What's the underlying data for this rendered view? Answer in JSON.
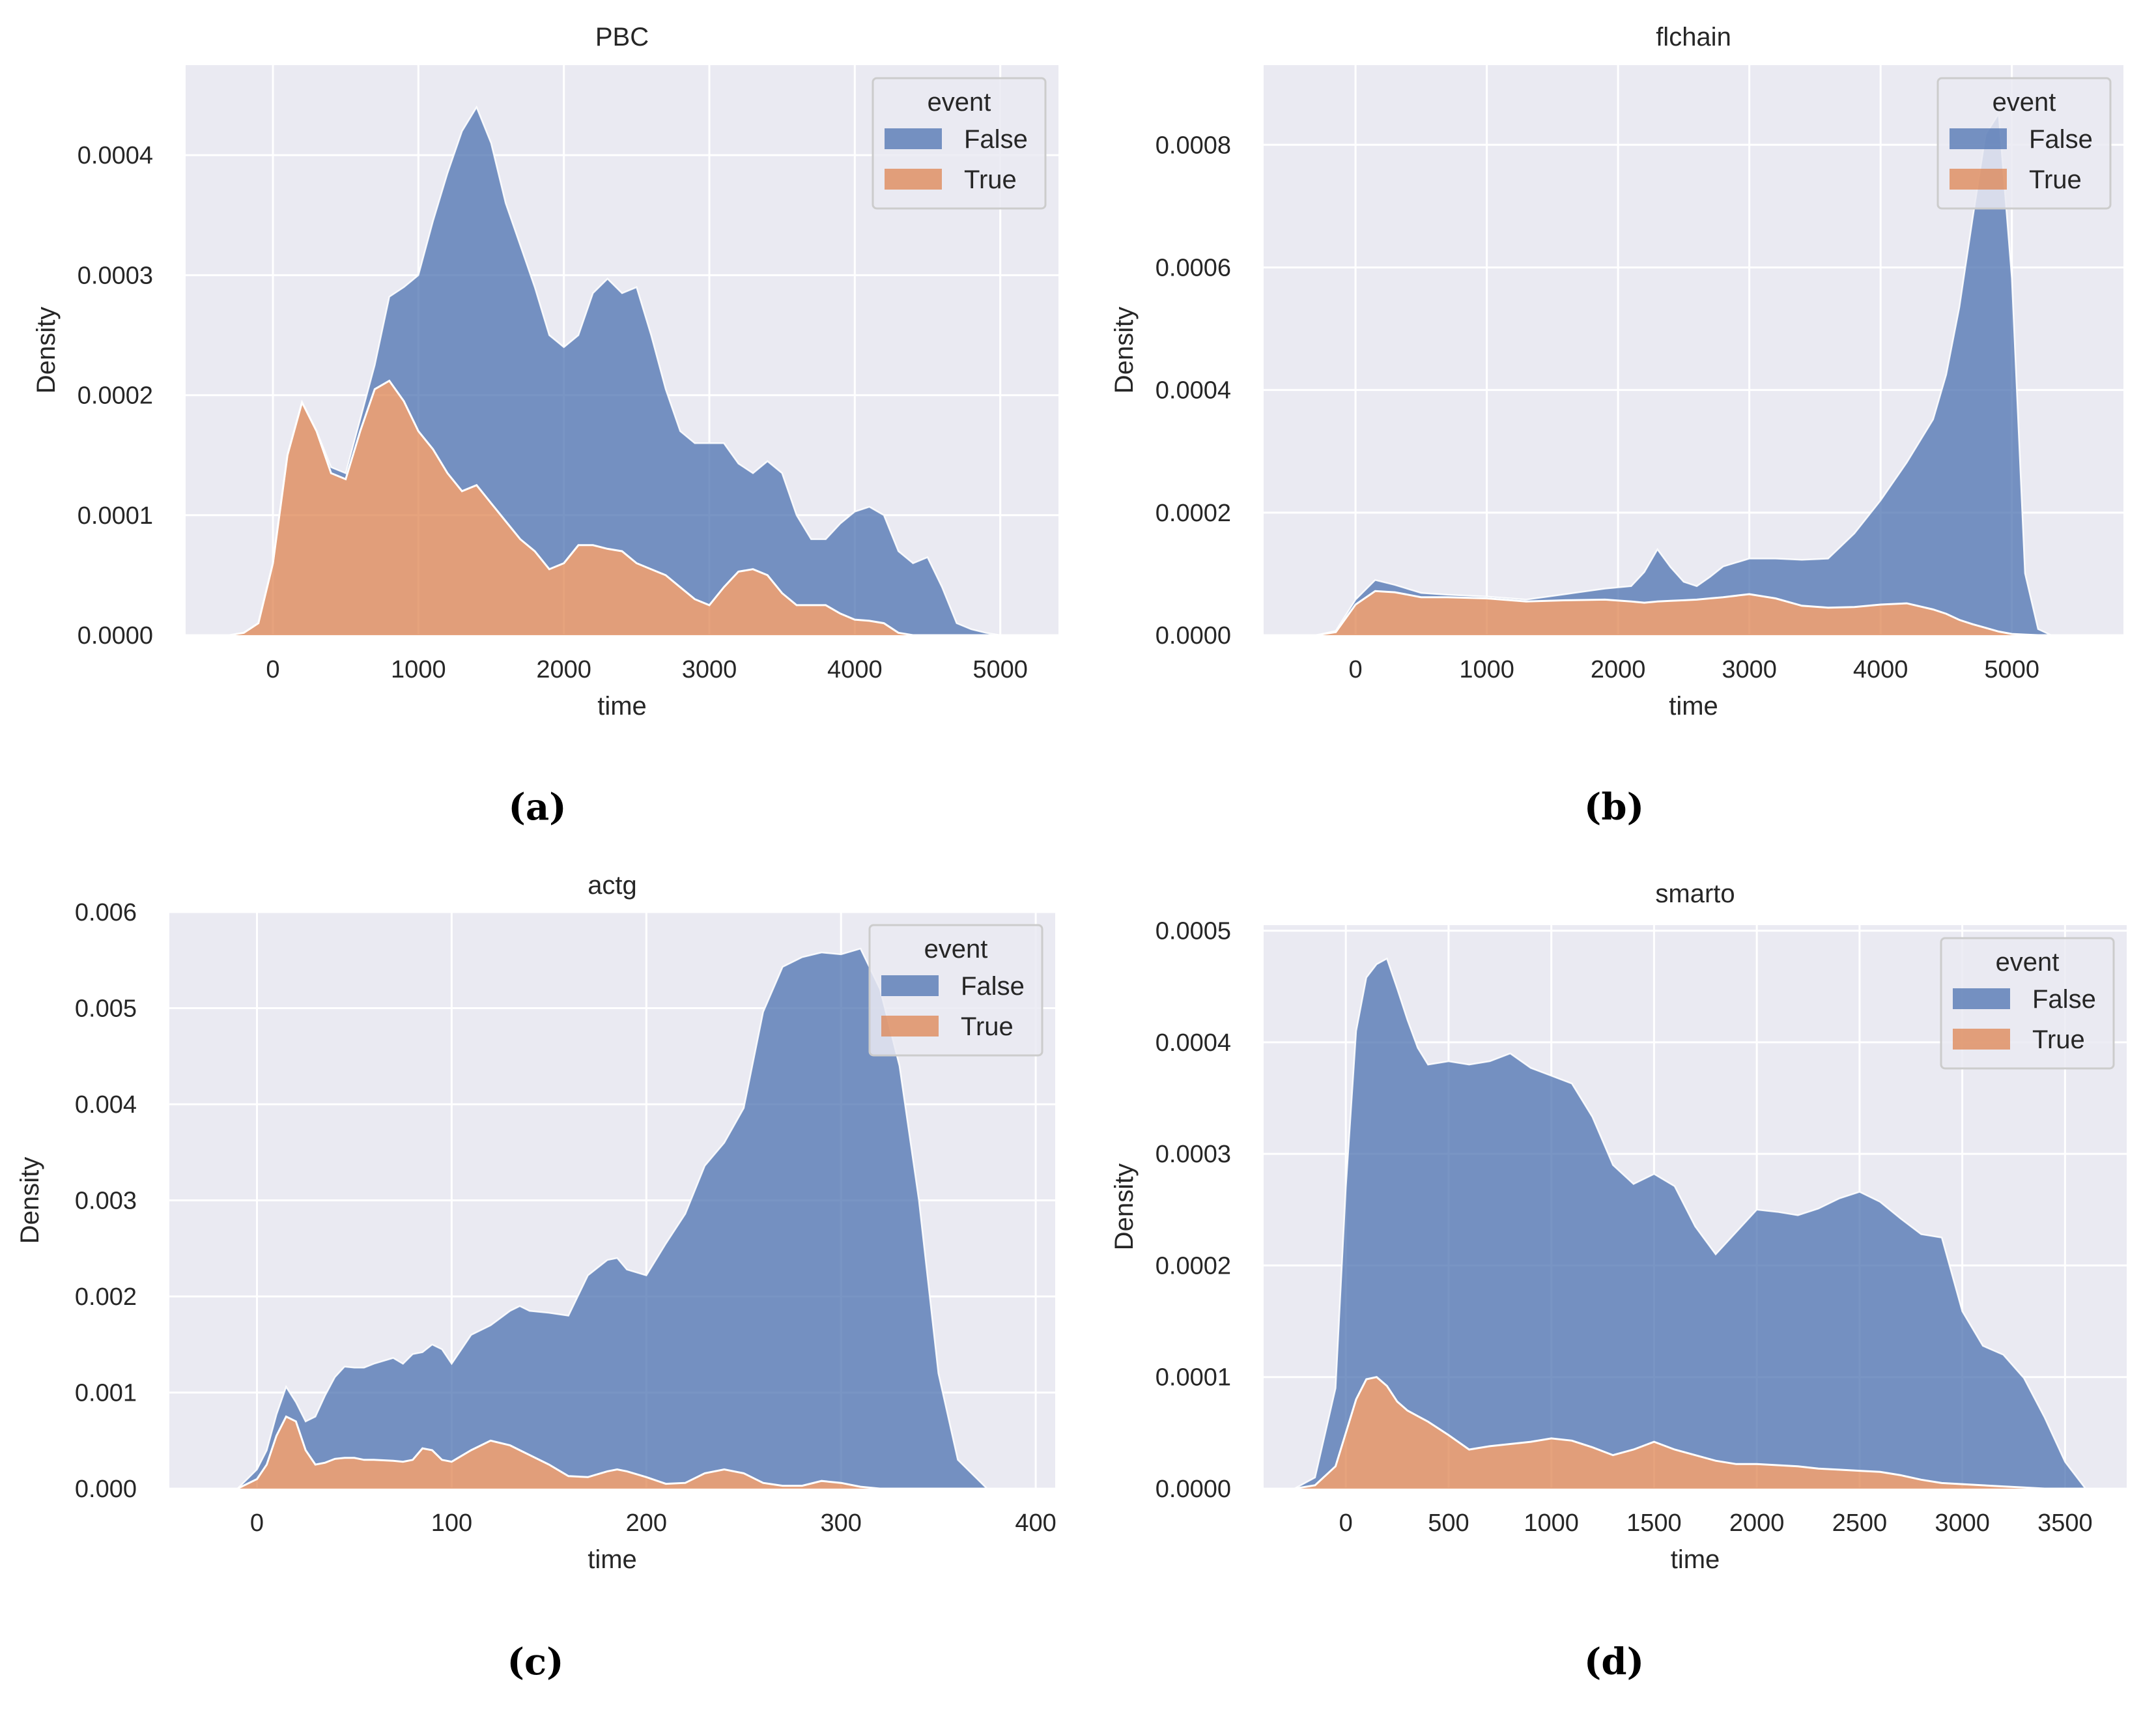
{
  "colors": {
    "false_fill": "#4C72B0",
    "true_fill": "#DD8452",
    "plot_bg": "#EAEAF2",
    "grid": "#FFFFFF",
    "page_bg": "#FFFFFF",
    "text": "#262626"
  },
  "chart_data": [
    {
      "type": "area",
      "stacked": true,
      "caption": "(a)",
      "title": "PBC",
      "xlabel": "time",
      "ylabel": "Density",
      "xlim": [
        -600,
        5400
      ],
      "ylim": [
        0,
        0.000475
      ],
      "xticks": [
        0,
        1000,
        2000,
        3000,
        4000,
        5000
      ],
      "xtick_labels": [
        "0",
        "1000",
        "2000",
        "3000",
        "4000",
        "5000"
      ],
      "yticks": [
        0,
        0.0001,
        0.0002,
        0.0003,
        0.0004
      ],
      "ytick_labels": [
        "0.0000",
        "0.0001",
        "0.0002",
        "0.0003",
        "0.0004"
      ],
      "legend": {
        "title": "event",
        "entries": [
          "False",
          "True"
        ],
        "position": "upper right"
      },
      "x": [
        -300,
        -200,
        -100,
        0,
        100,
        200,
        300,
        400,
        500,
        600,
        700,
        800,
        900,
        1000,
        1100,
        1200,
        1300,
        1400,
        1500,
        1600,
        1700,
        1800,
        1900,
        2000,
        2100,
        2200,
        2300,
        2400,
        2500,
        2600,
        2700,
        2800,
        2900,
        3000,
        3100,
        3200,
        3300,
        3400,
        3500,
        3600,
        3700,
        3800,
        3900,
        4000,
        4100,
        4200,
        4300,
        4400,
        4500,
        4600,
        4700,
        4800,
        4900,
        5000
      ],
      "series": [
        {
          "name": "True",
          "values": [
            0,
            2e-06,
            1e-05,
            6e-05,
            0.00015,
            0.000194,
            0.00017,
            0.000135,
            0.00013,
            0.00017,
            0.000205,
            0.000212,
            0.000195,
            0.00017,
            0.000155,
            0.000135,
            0.00012,
            0.000125,
            0.00011,
            9.5e-05,
            8e-05,
            7e-05,
            5.5e-05,
            6e-05,
            7.5e-05,
            7.5e-05,
            7.2e-05,
            7e-05,
            6e-05,
            5.5e-05,
            5e-05,
            4e-05,
            3e-05,
            2.5e-05,
            4e-05,
            5.3e-05,
            5.5e-05,
            5e-05,
            3.5e-05,
            2.5e-05,
            2.5e-05,
            2.5e-05,
            1.8e-05,
            1.3e-05,
            1.2e-05,
            1e-05,
            2e-06,
            0,
            0,
            0,
            0,
            0,
            0,
            0
          ]
        },
        {
          "name": "False",
          "values": [
            0,
            0,
            0,
            0,
            0,
            0,
            0,
            5e-06,
            5e-06,
            1e-05,
            2e-05,
            7e-05,
            9.5e-05,
            0.00013,
            0.00019,
            0.00025,
            0.0003,
            0.000315,
            0.0003,
            0.000265,
            0.000245,
            0.00022,
            0.000195,
            0.00018,
            0.000175,
            0.00021,
            0.000225,
            0.000215,
            0.00023,
            0.000195,
            0.000155,
            0.00013,
            0.00013,
            0.000135,
            0.00012,
            9e-05,
            8e-05,
            9.5e-05,
            0.0001,
            7.5e-05,
            5.5e-05,
            5.5e-05,
            7.5e-05,
            9e-05,
            9.5e-05,
            9e-05,
            6.8e-05,
            6e-05,
            6.5e-05,
            4e-05,
            1e-05,
            5e-06,
            2e-06,
            0
          ]
        }
      ]
    },
    {
      "type": "area",
      "stacked": true,
      "caption": "(b)",
      "title": "flchain",
      "xlabel": "time",
      "ylabel": "Density",
      "xlim": [
        -700,
        5850
      ],
      "ylim": [
        0,
        0.00093
      ],
      "xticks": [
        0,
        1000,
        2000,
        3000,
        4000,
        5000
      ],
      "xtick_labels": [
        "0",
        "1000",
        "2000",
        "3000",
        "4000",
        "5000"
      ],
      "yticks": [
        0,
        0.0002,
        0.0004,
        0.0006,
        0.0008
      ],
      "ytick_labels": [
        "0.0000",
        "0.0002",
        "0.0004",
        "0.0006",
        "0.0008"
      ],
      "legend": {
        "title": "event",
        "entries": [
          "False",
          "True"
        ],
        "position": "upper right"
      },
      "x": [
        -300,
        -150,
        0,
        150,
        300,
        500,
        700,
        1000,
        1300,
        1600,
        1900,
        2100,
        2200,
        2300,
        2400,
        2500,
        2600,
        2700,
        2800,
        3000,
        3200,
        3400,
        3600,
        3800,
        4000,
        4200,
        4400,
        4500,
        4600,
        4700,
        4800,
        4900,
        5000,
        5100,
        5200,
        5300
      ],
      "series": [
        {
          "name": "True",
          "values": [
            0,
            5e-06,
            5e-05,
            7.2e-05,
            7e-05,
            6.2e-05,
            6.2e-05,
            6e-05,
            5.5e-05,
            5.7e-05,
            5.8e-05,
            5.5e-05,
            5.3e-05,
            5.5e-05,
            5.6e-05,
            5.7e-05,
            5.8e-05,
            6e-05,
            6.2e-05,
            6.7e-05,
            6e-05,
            4.8e-05,
            4.5e-05,
            4.6e-05,
            5e-05,
            5.2e-05,
            4.2e-05,
            3.5e-05,
            2.5e-05,
            1.8e-05,
            1.2e-05,
            6e-06,
            2e-06,
            1e-06,
            0,
            0
          ]
        },
        {
          "name": "False",
          "values": [
            0,
            2e-06,
            8e-06,
            1.8e-05,
            1.2e-05,
            7e-06,
            4e-06,
            3e-06,
            3e-06,
            1e-05,
            1.8e-05,
            2.5e-05,
            5e-05,
            8.5e-05,
            5.5e-05,
            3e-05,
            2.2e-05,
            3.5e-05,
            5e-05,
            5.8e-05,
            6.5e-05,
            7.5e-05,
            8e-05,
            0.00012,
            0.00017,
            0.00023,
            0.00031,
            0.00039,
            0.00051,
            0.00066,
            0.000805,
            0.000845,
            0.00058,
            0.0001,
            1e-05,
            0
          ]
        }
      ]
    },
    {
      "type": "area",
      "stacked": true,
      "caption": "(c)",
      "title": "actg",
      "xlabel": "time",
      "ylabel": "Density",
      "xlim": [
        -45,
        410
      ],
      "ylim": [
        0,
        0.006
      ],
      "xticks": [
        0,
        100,
        200,
        300,
        400
      ],
      "xtick_labels": [
        "0",
        "100",
        "200",
        "300",
        "400"
      ],
      "yticks": [
        0,
        0.001,
        0.002,
        0.003,
        0.004,
        0.005,
        0.006
      ],
      "ytick_labels": [
        "0.000",
        "0.001",
        "0.002",
        "0.003",
        "0.004",
        "0.005",
        "0.006"
      ],
      "legend": {
        "title": "event",
        "entries": [
          "False",
          "True"
        ],
        "position": "upper right"
      },
      "x": [
        -10,
        0,
        5,
        10,
        15,
        20,
        25,
        30,
        35,
        40,
        45,
        50,
        55,
        60,
        70,
        75,
        80,
        85,
        90,
        95,
        100,
        110,
        120,
        130,
        135,
        140,
        150,
        160,
        170,
        180,
        185,
        190,
        200,
        210,
        220,
        230,
        240,
        250,
        260,
        270,
        280,
        290,
        300,
        310,
        320,
        330,
        340,
        350,
        360,
        375
      ],
      "series": [
        {
          "name": "True",
          "values": [
            0,
            0.0001,
            0.00025,
            0.00055,
            0.00075,
            0.0007,
            0.0004,
            0.00025,
            0.00027,
            0.00031,
            0.00032,
            0.00032,
            0.0003,
            0.0003,
            0.00029,
            0.00028,
            0.0003,
            0.00042,
            0.0004,
            0.0003,
            0.00028,
            0.0004,
            0.0005,
            0.00045,
            0.0004,
            0.00035,
            0.00025,
            0.00013,
            0.00012,
            0.00018,
            0.0002,
            0.00018,
            0.00012,
            5e-05,
            6e-05,
            0.00016,
            0.0002,
            0.00016,
            6e-05,
            3e-05,
            3e-05,
            8e-05,
            6e-05,
            2e-05,
            0,
            0,
            0,
            0,
            0,
            0
          ]
        },
        {
          "name": "False",
          "values": [
            0,
            0.0001,
            0.00015,
            0.00022,
            0.00031,
            0.0002,
            0.0003,
            0.0005,
            0.0007,
            0.00085,
            0.00095,
            0.00094,
            0.00096,
            0.001,
            0.00107,
            0.00102,
            0.0011,
            0.001,
            0.0011,
            0.00115,
            0.00102,
            0.0012,
            0.0012,
            0.0014,
            0.0015,
            0.0015,
            0.00158,
            0.00167,
            0.0021,
            0.0022,
            0.0022,
            0.0021,
            0.0021,
            0.0025,
            0.0028,
            0.0032,
            0.0034,
            0.0038,
            0.0049,
            0.0054,
            0.0055,
            0.0055,
            0.0055,
            0.0056,
            0.0052,
            0.0044,
            0.003,
            0.0012,
            0.0003,
            0
          ]
        }
      ]
    },
    {
      "type": "area",
      "stacked": true,
      "caption": "(d)",
      "title": "smarto",
      "xlabel": "time",
      "ylabel": "Density",
      "xlim": [
        -400,
        3800
      ],
      "ylim": [
        0,
        0.000505
      ],
      "xticks": [
        0,
        500,
        1000,
        1500,
        2000,
        2500,
        3000,
        3500
      ],
      "xtick_labels": [
        "0",
        "500",
        "1000",
        "1500",
        "2000",
        "2500",
        "3000",
        "3500"
      ],
      "yticks": [
        0,
        0.0001,
        0.0002,
        0.0003,
        0.0004,
        0.0005
      ],
      "ytick_labels": [
        "0.0000",
        "0.0001",
        "0.0002",
        "0.0003",
        "0.0004",
        "0.0005"
      ],
      "legend": {
        "title": "event",
        "entries": [
          "False",
          "True"
        ],
        "position": "upper right"
      },
      "x": [
        -250,
        -150,
        -50,
        0,
        50,
        100,
        150,
        200,
        250,
        300,
        350,
        400,
        500,
        600,
        700,
        800,
        900,
        1000,
        1100,
        1200,
        1300,
        1400,
        1500,
        1600,
        1700,
        1800,
        1900,
        2000,
        2100,
        2200,
        2300,
        2400,
        2500,
        2600,
        2700,
        2800,
        2900,
        3000,
        3100,
        3200,
        3300,
        3400,
        3500,
        3600
      ],
      "series": [
        {
          "name": "True",
          "values": [
            0,
            3e-06,
            2e-05,
            5e-05,
            8e-05,
            9.8e-05,
            0.0001,
            9.2e-05,
            7.8e-05,
            7e-05,
            6.5e-05,
            6e-05,
            4.8e-05,
            3.5e-05,
            3.8e-05,
            4e-05,
            4.2e-05,
            4.5e-05,
            4.3e-05,
            3.7e-05,
            3e-05,
            3.5e-05,
            4.2e-05,
            3.5e-05,
            3e-05,
            2.5e-05,
            2.2e-05,
            2.2e-05,
            2.1e-05,
            2e-05,
            1.8e-05,
            1.7e-05,
            1.6e-05,
            1.5e-05,
            1.2e-05,
            8e-06,
            5e-06,
            4e-06,
            3e-06,
            2e-06,
            1e-06,
            0,
            0,
            0
          ]
        },
        {
          "name": "False",
          "values": [
            0,
            7e-06,
            7e-05,
            0.00022,
            0.00033,
            0.00036,
            0.00037,
            0.000383,
            0.00037,
            0.00035,
            0.00033,
            0.00032,
            0.000335,
            0.000345,
            0.000345,
            0.00035,
            0.000335,
            0.000325,
            0.00032,
            0.000296,
            0.00026,
            0.000238,
            0.00024,
            0.000236,
            0.000205,
            0.000185,
            0.000208,
            0.000228,
            0.000227,
            0.000225,
            0.000233,
            0.000243,
            0.00025,
            0.000242,
            0.00023,
            0.00022,
            0.00022,
            0.000155,
            0.000125,
            0.000118,
            9.8e-05,
            6.4e-05,
            2.4e-05,
            0
          ]
        }
      ]
    }
  ]
}
